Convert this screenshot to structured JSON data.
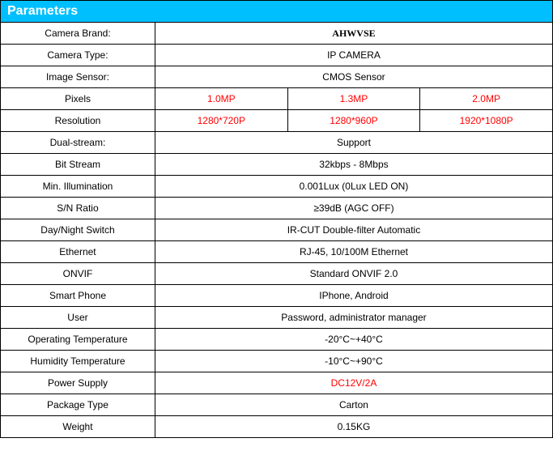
{
  "header": {
    "title": "Parameters"
  },
  "rows": {
    "camera_brand": {
      "label": "Camera Brand:",
      "value": "AHWVSE"
    },
    "camera_type": {
      "label": "Camera Type:",
      "value": "IP CAMERA"
    },
    "image_sensor": {
      "label": "Image Sensor:",
      "value": "CMOS Sensor"
    },
    "pixels": {
      "label": "Pixels",
      "v1": "1.0MP",
      "v2": "1.3MP",
      "v3": "2.0MP"
    },
    "resolution": {
      "label": "Resolution",
      "v1": "1280*720P",
      "v2": "1280*960P",
      "v3": "1920*1080P"
    },
    "dual_stream": {
      "label": "Dual-stream:",
      "value": "Support"
    },
    "bit_stream": {
      "label": "Bit Stream",
      "value": "32kbps - 8Mbps"
    },
    "min_illumination": {
      "label": "Min. Illumination",
      "value": "0.001Lux (0Lux LED ON)"
    },
    "sn_ratio": {
      "label": "S/N Ratio",
      "value": "≥39dB (AGC OFF)"
    },
    "day_night": {
      "label": "Day/Night Switch",
      "value": "IR-CUT Double-filter Automatic"
    },
    "ethernet": {
      "label": "Ethernet",
      "value": "RJ-45, 10/100M Ethernet"
    },
    "onvif": {
      "label": "ONVIF",
      "value": "Standard ONVIF 2.0"
    },
    "smart_phone": {
      "label": "Smart Phone",
      "value": "IPhone, Android"
    },
    "user": {
      "label": "User",
      "value": "Password, administrator manager"
    },
    "operating_temp": {
      "label": "Operating Temperature",
      "value": "-20°C~+40°C"
    },
    "humidity_temp": {
      "label": "Humidity Temperature",
      "value": "-10°C~+90°C"
    },
    "power_supply": {
      "label": "Power Supply",
      "value": "DC12V/2A"
    },
    "package_type": {
      "label": "Package Type",
      "value": "Carton"
    },
    "weight": {
      "label": "Weight",
      "value": "0.15KG"
    }
  }
}
